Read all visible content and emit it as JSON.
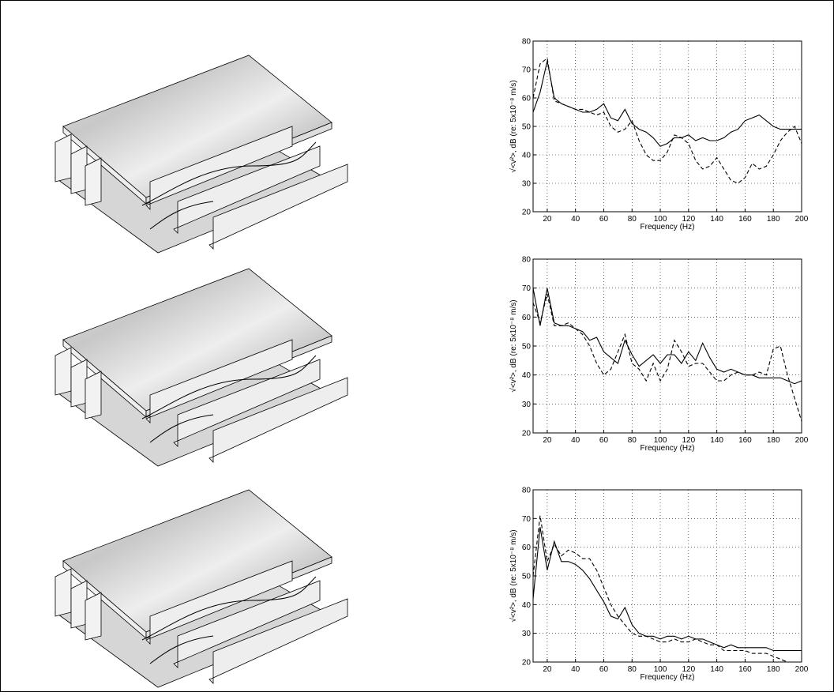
{
  "chart_data": [
    {
      "type": "line",
      "xlabel": "Frequency (Hz)",
      "ylabel": "√<v²>, dB (re: 5x10⁻⁸ m/s)",
      "x": [
        10,
        15,
        20,
        25,
        30,
        35,
        40,
        45,
        50,
        55,
        60,
        65,
        70,
        75,
        80,
        85,
        90,
        95,
        100,
        105,
        110,
        115,
        120,
        125,
        130,
        135,
        140,
        145,
        150,
        155,
        160,
        165,
        170,
        175,
        180,
        185,
        190,
        195,
        200
      ],
      "xlim": [
        10,
        200
      ],
      "xticks": [
        20,
        40,
        60,
        80,
        100,
        120,
        140,
        160,
        180,
        200
      ],
      "ylim": [
        20,
        80
      ],
      "yticks": [
        20,
        30,
        40,
        50,
        60,
        70,
        80
      ],
      "grid": true,
      "series": [
        {
          "color": "#000000",
          "style": "solid",
          "values": [
            55,
            62,
            73,
            60,
            58,
            57,
            56,
            55,
            55,
            56,
            58,
            53,
            52,
            56,
            51,
            49,
            48,
            46,
            43,
            44,
            46,
            46,
            47,
            45,
            46,
            45,
            45,
            46,
            48,
            49,
            52,
            53,
            54,
            52,
            50,
            49,
            49,
            49,
            49
          ]
        },
        {
          "color": "#000000",
          "style": "dashed",
          "values": [
            60,
            72,
            74,
            59,
            58,
            57,
            56,
            56,
            55,
            54,
            55,
            50,
            48,
            49,
            52,
            45,
            40,
            38,
            38,
            41,
            47,
            46,
            44,
            38,
            35,
            36,
            39,
            35,
            31,
            30,
            32,
            37,
            35,
            36,
            40,
            45,
            48,
            50,
            44
          ]
        }
      ]
    },
    {
      "type": "line",
      "xlabel": "Frequency (Hz)",
      "ylabel": "√<v²>, dB (re: 5x10⁻⁸ m/s)",
      "x": [
        10,
        15,
        20,
        25,
        30,
        35,
        40,
        45,
        50,
        55,
        60,
        65,
        70,
        75,
        80,
        85,
        90,
        95,
        100,
        105,
        110,
        115,
        120,
        125,
        130,
        135,
        140,
        145,
        150,
        155,
        160,
        165,
        170,
        175,
        180,
        185,
        190,
        195,
        200
      ],
      "xlim": [
        10,
        200
      ],
      "xticks": [
        20,
        40,
        60,
        80,
        100,
        120,
        140,
        160,
        180,
        200
      ],
      "ylim": [
        20,
        80
      ],
      "yticks": [
        20,
        30,
        40,
        50,
        60,
        70,
        80
      ],
      "grid": true,
      "series": [
        {
          "color": "#000000",
          "style": "solid",
          "values": [
            70,
            57,
            70,
            58,
            57,
            57,
            56,
            55,
            52,
            53,
            48,
            46,
            44,
            52,
            47,
            43,
            45,
            47,
            44,
            47,
            47,
            44,
            48,
            45,
            51,
            46,
            42,
            41,
            42,
            41,
            40,
            40,
            39,
            39,
            39,
            39,
            38,
            37,
            38
          ]
        },
        {
          "color": "#000000",
          "style": "dashed",
          "values": [
            65,
            58,
            68,
            57,
            57,
            58,
            56,
            54,
            50,
            44,
            40,
            42,
            48,
            54,
            44,
            42,
            38,
            44,
            38,
            42,
            52,
            48,
            43,
            44,
            44,
            41,
            38,
            38,
            40,
            41,
            40,
            40,
            41,
            40,
            49,
            50,
            40,
            32,
            24
          ]
        }
      ]
    },
    {
      "type": "line",
      "xlabel": "Frequency (Hz)",
      "ylabel": "√<v²>, dB (re: 5x10⁻⁸ m/s)",
      "x": [
        10,
        15,
        20,
        25,
        30,
        35,
        40,
        45,
        50,
        55,
        60,
        65,
        70,
        75,
        80,
        85,
        90,
        95,
        100,
        105,
        110,
        115,
        120,
        125,
        130,
        135,
        140,
        145,
        150,
        155,
        160,
        165,
        170,
        175,
        180,
        185,
        190,
        195,
        200
      ],
      "xlim": [
        10,
        200
      ],
      "xticks": [
        20,
        40,
        60,
        80,
        100,
        120,
        140,
        160,
        180,
        200
      ],
      "ylim": [
        20,
        80
      ],
      "yticks": [
        20,
        30,
        40,
        50,
        60,
        70,
        80
      ],
      "grid": true,
      "series": [
        {
          "color": "#000000",
          "style": "solid",
          "values": [
            42,
            67,
            52,
            62,
            55,
            55,
            54,
            52,
            49,
            45,
            41,
            36,
            35,
            39,
            33,
            30,
            29,
            29,
            28,
            29,
            29,
            28,
            29,
            28,
            28,
            27,
            26,
            25,
            26,
            25,
            25,
            25,
            25,
            25,
            24,
            24,
            24,
            24,
            24
          ]
        },
        {
          "color": "#000000",
          "style": "dashed",
          "values": [
            50,
            71,
            55,
            61,
            57,
            59,
            58,
            56,
            56,
            52,
            46,
            40,
            36,
            33,
            30,
            29,
            29,
            28,
            27,
            27,
            28,
            27,
            27,
            28,
            27,
            26,
            26,
            24,
            24,
            24,
            24,
            23,
            23,
            23,
            22,
            21,
            20,
            20,
            20
          ]
        }
      ]
    }
  ]
}
